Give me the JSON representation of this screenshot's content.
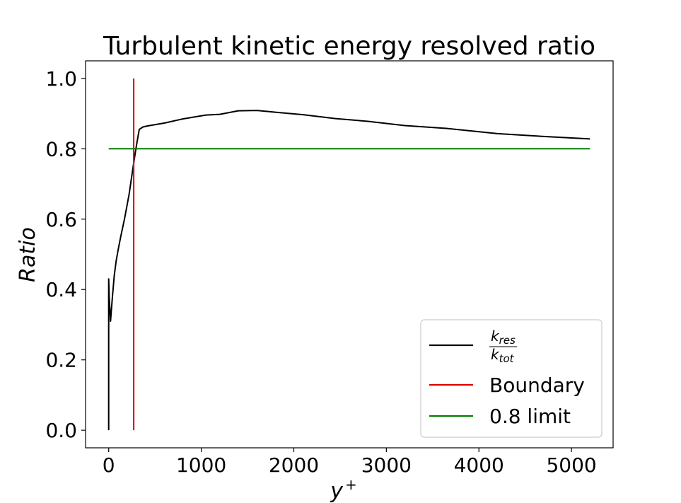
{
  "chart_data": {
    "type": "line",
    "title": "Turbulent kinetic energy resolved ratio",
    "xlabel": "y",
    "xlabel_sup": "+",
    "ylabel": "Ratio",
    "xlim": [
      -250,
      5450
    ],
    "ylim": [
      -0.05,
      1.05
    ],
    "xticks": [
      0,
      1000,
      2000,
      3000,
      4000,
      5000
    ],
    "yticks": [
      0.0,
      0.2,
      0.4,
      0.6,
      0.8,
      1.0
    ],
    "xtick_labels": [
      "0",
      "1000",
      "2000",
      "3000",
      "4000",
      "5000"
    ],
    "ytick_labels": [
      "0.0",
      "0.2",
      "0.4",
      "0.6",
      "0.8",
      "1.0"
    ],
    "grid": false,
    "legend_position": "lower-right",
    "series": [
      {
        "name": "k_res / k_tot",
        "legend_num": "k",
        "legend_num_sub": "res",
        "legend_den": "k",
        "legend_den_sub": "tot",
        "color": "#000000",
        "x": [
          0,
          0,
          5,
          20,
          40,
          60,
          80,
          100,
          130,
          170,
          220,
          270,
          300,
          330,
          370,
          420,
          600,
          800,
          1050,
          1200,
          1400,
          1600,
          1800,
          2100,
          2450,
          2800,
          3200,
          3650,
          4200,
          4700,
          5200
        ],
        "y": [
          0.0,
          0.43,
          0.38,
          0.31,
          0.38,
          0.44,
          0.48,
          0.51,
          0.55,
          0.6,
          0.67,
          0.76,
          0.81,
          0.855,
          0.862,
          0.865,
          0.873,
          0.885,
          0.896,
          0.898,
          0.908,
          0.909,
          0.904,
          0.897,
          0.886,
          0.878,
          0.866,
          0.858,
          0.843,
          0.835,
          0.828
        ]
      },
      {
        "name": "Boundary",
        "color": "#e00000",
        "x": [
          270,
          270
        ],
        "y": [
          0.0,
          1.0
        ]
      },
      {
        "name": "0.8 limit",
        "color": "#008000",
        "x": [
          0,
          5200
        ],
        "y": [
          0.8,
          0.8
        ]
      }
    ]
  }
}
